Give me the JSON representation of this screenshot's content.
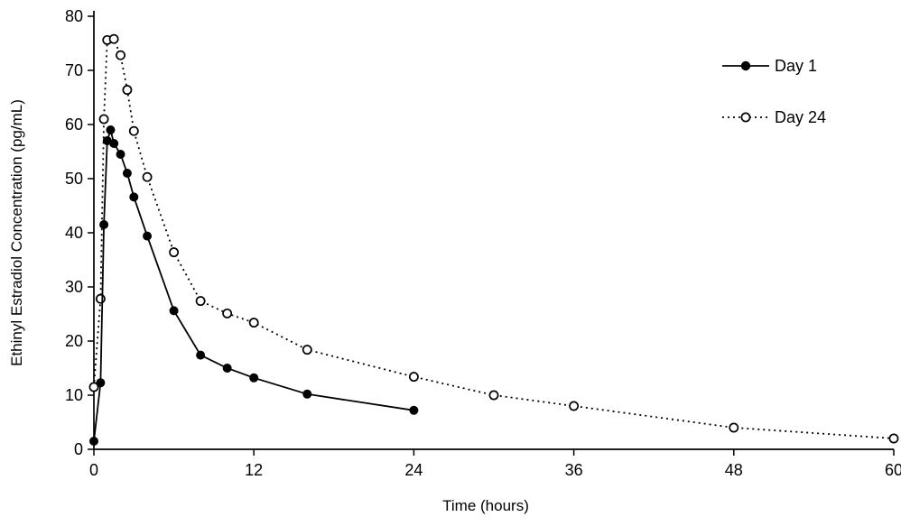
{
  "figure": {
    "background_color": "#ffffff",
    "ink_color": "#000000"
  },
  "chart_data": {
    "type": "line",
    "title": "",
    "xlabel": "Time (hours)",
    "ylabel": "Ethinyl Estradiol Concentration (pg/mL)",
    "xlim": [
      0,
      60
    ],
    "ylim": [
      0,
      80
    ],
    "xticks": [
      0,
      12,
      24,
      36,
      48,
      60
    ],
    "yticks": [
      0,
      10,
      20,
      30,
      40,
      50,
      60,
      70,
      80
    ],
    "grid": false,
    "legend_position": "upper-right",
    "series": [
      {
        "name": "Day 1",
        "line_style": "solid",
        "marker": "filled-circle",
        "color": "#000000",
        "x": [
          0,
          0.5,
          0.75,
          1,
          1.25,
          1.5,
          2,
          2.5,
          3,
          4,
          6,
          8,
          10,
          12,
          16,
          24
        ],
        "y": [
          1.5,
          12.3,
          41.5,
          57.0,
          59.0,
          56.5,
          54.5,
          51.0,
          46.6,
          39.4,
          25.6,
          17.4,
          15.0,
          13.2,
          10.2,
          7.2
        ]
      },
      {
        "name": "Day 24",
        "line_style": "dotted",
        "marker": "open-circle",
        "color": "#000000",
        "x": [
          0,
          0.5,
          0.75,
          1,
          1.5,
          2,
          2.5,
          3,
          4,
          6,
          8,
          10,
          12,
          16,
          24,
          30,
          36,
          48,
          60
        ],
        "y": [
          11.5,
          27.8,
          61.0,
          75.6,
          75.8,
          72.8,
          66.4,
          58.8,
          50.3,
          36.4,
          27.4,
          25.1,
          23.4,
          18.4,
          13.4,
          10.0,
          8.0,
          4.0,
          2.0
        ]
      }
    ]
  }
}
